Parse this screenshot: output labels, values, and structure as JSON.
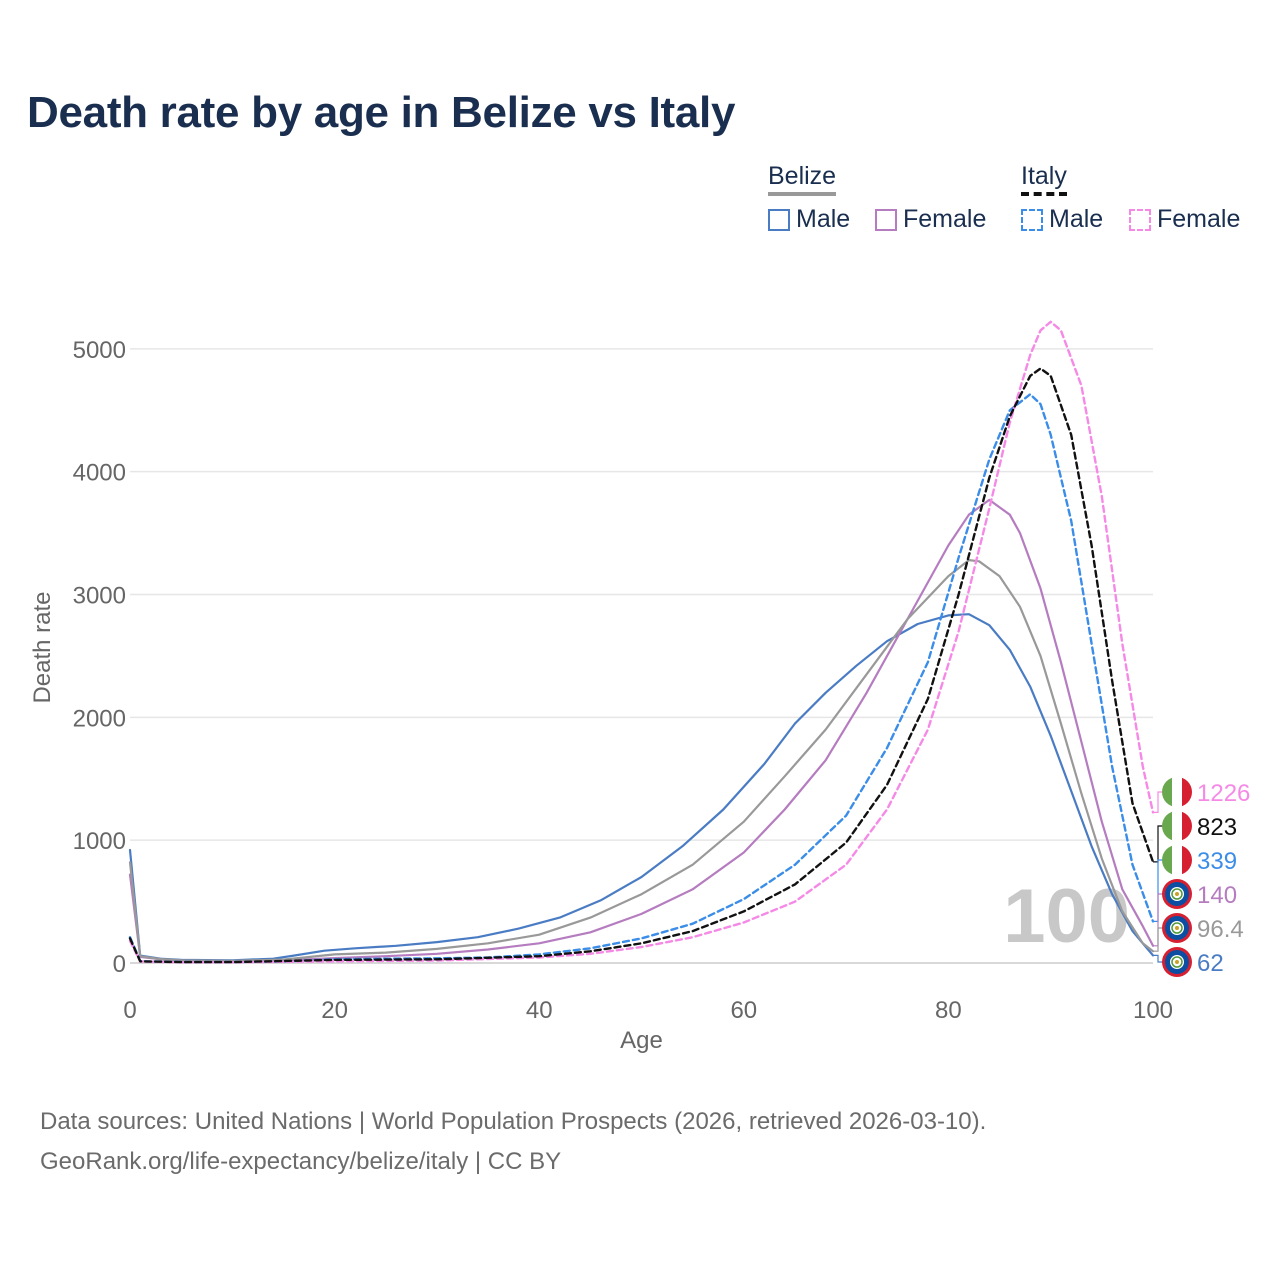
{
  "title": "Death rate by age in Belize vs Italy",
  "legend": {
    "groups": [
      {
        "name": "Belize",
        "items": [
          {
            "label": "Male",
            "series": "belize_male"
          },
          {
            "label": "Female",
            "series": "belize_female"
          }
        ]
      },
      {
        "name": "Italy",
        "items": [
          {
            "label": "Male",
            "series": "italy_male"
          },
          {
            "label": "Female",
            "series": "italy_female"
          }
        ]
      }
    ]
  },
  "footer": {
    "line1": "Data sources: United Nations | World Population Prospects (2026, retrieved 2026-03-10).",
    "line2": "GeoRank.org/life-expectancy/belize/italy | CC BY"
  },
  "colors": {
    "belize_male": "#4a7cc4",
    "belize_female": "#b57cc0",
    "belize_total": "#999999",
    "italy_male": "#3b8de8",
    "italy_female": "#f58ae6",
    "italy_total": "#111111",
    "title": "#1a2e4f",
    "watermark": "#c8c8c8"
  },
  "chart_data": {
    "type": "line",
    "xlabel": "Age",
    "ylabel": "Death rate",
    "xlim": [
      0,
      100
    ],
    "ylim": [
      0,
      5300
    ],
    "xticks": [
      0,
      20,
      40,
      60,
      80,
      100
    ],
    "yticks": [
      0,
      1000,
      2000,
      3000,
      4000,
      5000
    ],
    "grid": true,
    "watermark": "100",
    "series": [
      {
        "key": "belize_male",
        "name": "Belize Male",
        "dash": "solid",
        "points": [
          [
            0,
            920
          ],
          [
            1,
            60
          ],
          [
            3,
            35
          ],
          [
            5,
            25
          ],
          [
            10,
            22
          ],
          [
            14,
            35
          ],
          [
            16,
            60
          ],
          [
            19,
            100
          ],
          [
            22,
            120
          ],
          [
            26,
            140
          ],
          [
            30,
            170
          ],
          [
            34,
            210
          ],
          [
            38,
            280
          ],
          [
            42,
            370
          ],
          [
            46,
            510
          ],
          [
            50,
            700
          ],
          [
            54,
            950
          ],
          [
            58,
            1250
          ],
          [
            62,
            1620
          ],
          [
            65,
            1950
          ],
          [
            68,
            2200
          ],
          [
            71,
            2420
          ],
          [
            74,
            2620
          ],
          [
            77,
            2760
          ],
          [
            80,
            2830
          ],
          [
            82,
            2840
          ],
          [
            84,
            2750
          ],
          [
            86,
            2550
          ],
          [
            88,
            2250
          ],
          [
            90,
            1850
          ],
          [
            92,
            1400
          ],
          [
            94,
            950
          ],
          [
            96,
            560
          ],
          [
            98,
            260
          ],
          [
            100,
            62
          ]
        ]
      },
      {
        "key": "belize_female",
        "name": "Belize Female",
        "dash": "solid",
        "points": [
          [
            0,
            720
          ],
          [
            1,
            50
          ],
          [
            3,
            30
          ],
          [
            5,
            20
          ],
          [
            10,
            15
          ],
          [
            15,
            20
          ],
          [
            20,
            40
          ],
          [
            25,
            55
          ],
          [
            30,
            75
          ],
          [
            35,
            110
          ],
          [
            40,
            160
          ],
          [
            45,
            250
          ],
          [
            50,
            400
          ],
          [
            55,
            600
          ],
          [
            60,
            900
          ],
          [
            64,
            1250
          ],
          [
            68,
            1650
          ],
          [
            72,
            2200
          ],
          [
            76,
            2800
          ],
          [
            80,
            3400
          ],
          [
            82,
            3650
          ],
          [
            84,
            3770
          ],
          [
            86,
            3650
          ],
          [
            87,
            3500
          ],
          [
            89,
            3050
          ],
          [
            91,
            2450
          ],
          [
            93,
            1800
          ],
          [
            95,
            1150
          ],
          [
            97,
            600
          ],
          [
            99,
            300
          ],
          [
            100,
            140
          ]
        ]
      },
      {
        "key": "belize_total",
        "name": "Belize Total",
        "dash": "solid",
        "points": [
          [
            0,
            820
          ],
          [
            1,
            55
          ],
          [
            3,
            32
          ],
          [
            5,
            22
          ],
          [
            10,
            18
          ],
          [
            15,
            28
          ],
          [
            20,
            70
          ],
          [
            25,
            85
          ],
          [
            30,
            115
          ],
          [
            35,
            160
          ],
          [
            40,
            230
          ],
          [
            45,
            370
          ],
          [
            50,
            560
          ],
          [
            55,
            800
          ],
          [
            60,
            1150
          ],
          [
            64,
            1520
          ],
          [
            68,
            1900
          ],
          [
            72,
            2350
          ],
          [
            76,
            2800
          ],
          [
            80,
            3150
          ],
          [
            82,
            3280
          ],
          [
            83,
            3270
          ],
          [
            85,
            3150
          ],
          [
            87,
            2900
          ],
          [
            89,
            2500
          ],
          [
            91,
            1950
          ],
          [
            93,
            1380
          ],
          [
            95,
            850
          ],
          [
            97,
            420
          ],
          [
            99,
            160
          ],
          [
            100,
            96
          ]
        ]
      },
      {
        "key": "italy_male",
        "name": "Italy Male",
        "dash": "dashed",
        "points": [
          [
            0,
            210
          ],
          [
            1,
            15
          ],
          [
            5,
            8
          ],
          [
            10,
            8
          ],
          [
            15,
            12
          ],
          [
            20,
            30
          ],
          [
            25,
            35
          ],
          [
            30,
            38
          ],
          [
            35,
            45
          ],
          [
            40,
            70
          ],
          [
            45,
            120
          ],
          [
            50,
            200
          ],
          [
            55,
            320
          ],
          [
            60,
            520
          ],
          [
            65,
            800
          ],
          [
            70,
            1200
          ],
          [
            74,
            1750
          ],
          [
            78,
            2450
          ],
          [
            81,
            3300
          ],
          [
            84,
            4100
          ],
          [
            86,
            4500
          ],
          [
            88,
            4630
          ],
          [
            89,
            4550
          ],
          [
            90,
            4300
          ],
          [
            92,
            3600
          ],
          [
            94,
            2600
          ],
          [
            96,
            1600
          ],
          [
            98,
            800
          ],
          [
            100,
            339
          ]
        ]
      },
      {
        "key": "italy_female",
        "name": "Italy Female",
        "dash": "dashed",
        "points": [
          [
            0,
            180
          ],
          [
            1,
            12
          ],
          [
            5,
            6
          ],
          [
            10,
            6
          ],
          [
            20,
            14
          ],
          [
            30,
            20
          ],
          [
            40,
            45
          ],
          [
            45,
            75
          ],
          [
            50,
            130
          ],
          [
            55,
            210
          ],
          [
            60,
            330
          ],
          [
            65,
            500
          ],
          [
            70,
            800
          ],
          [
            74,
            1250
          ],
          [
            78,
            1900
          ],
          [
            81,
            2700
          ],
          [
            84,
            3700
          ],
          [
            86,
            4400
          ],
          [
            88,
            4950
          ],
          [
            89,
            5150
          ],
          [
            90,
            5220
          ],
          [
            91,
            5150
          ],
          [
            93,
            4700
          ],
          [
            95,
            3800
          ],
          [
            97,
            2600
          ],
          [
            99,
            1600
          ],
          [
            100,
            1226
          ]
        ]
      },
      {
        "key": "italy_total",
        "name": "Italy Total",
        "dash": "dashed",
        "points": [
          [
            0,
            200
          ],
          [
            1,
            14
          ],
          [
            5,
            7
          ],
          [
            10,
            7
          ],
          [
            20,
            25
          ],
          [
            30,
            30
          ],
          [
            40,
            55
          ],
          [
            45,
            95
          ],
          [
            50,
            160
          ],
          [
            55,
            260
          ],
          [
            60,
            420
          ],
          [
            65,
            640
          ],
          [
            70,
            980
          ],
          [
            74,
            1450
          ],
          [
            78,
            2150
          ],
          [
            81,
            3000
          ],
          [
            84,
            3950
          ],
          [
            86,
            4450
          ],
          [
            88,
            4780
          ],
          [
            89,
            4840
          ],
          [
            90,
            4780
          ],
          [
            92,
            4300
          ],
          [
            94,
            3400
          ],
          [
            96,
            2300
          ],
          [
            98,
            1300
          ],
          [
            100,
            823
          ]
        ]
      }
    ],
    "end_labels": [
      {
        "series": "italy_female",
        "country": "Italy",
        "value": "1226"
      },
      {
        "series": "italy_total",
        "country": "Italy",
        "value": "823"
      },
      {
        "series": "italy_male",
        "country": "Italy",
        "value": "339"
      },
      {
        "series": "belize_female",
        "country": "Belize",
        "value": "140"
      },
      {
        "series": "belize_total",
        "country": "Belize",
        "value": "96.4"
      },
      {
        "series": "belize_male",
        "country": "Belize",
        "value": "62"
      }
    ]
  }
}
